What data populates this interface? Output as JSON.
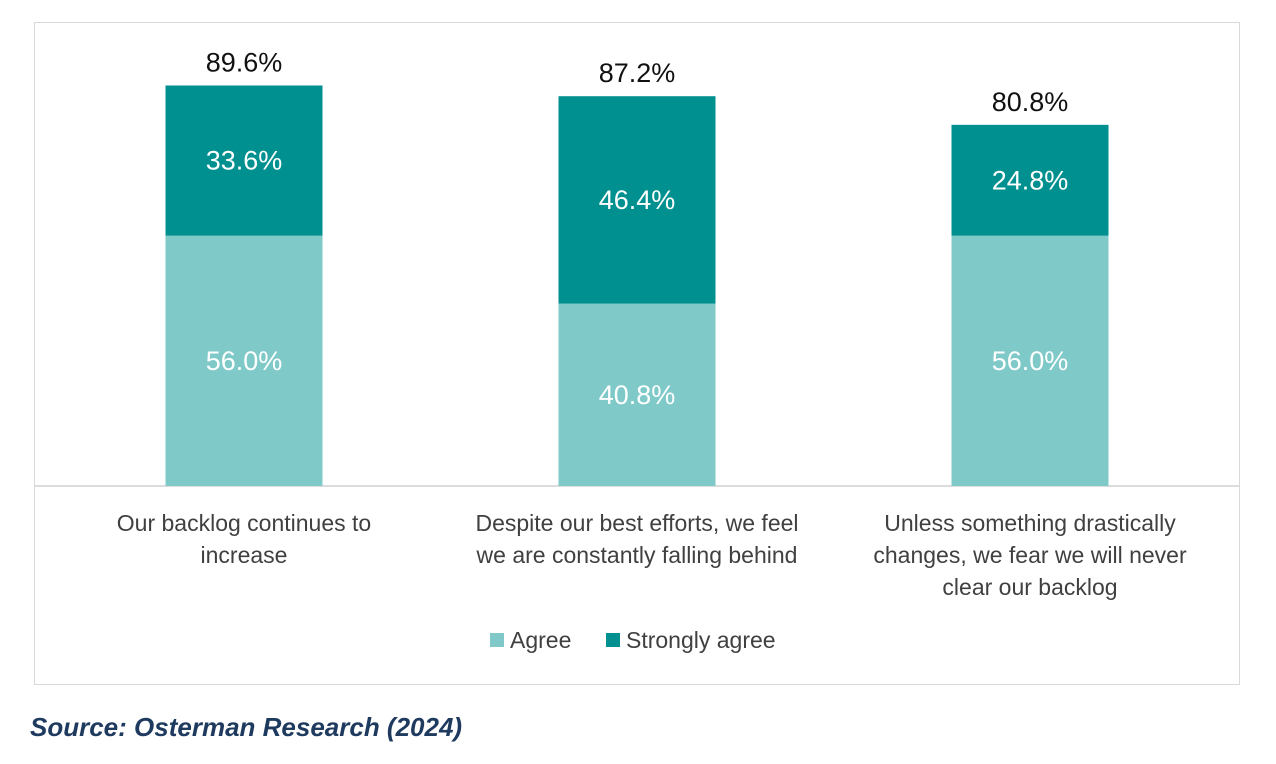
{
  "source_note": "Source: Osterman Research (2024)",
  "colors": {
    "agree": "#7fc9c9",
    "strongly_agree": "#009090",
    "axis": "#d0d0d0"
  },
  "chart_data": {
    "type": "bar",
    "stacked": true,
    "categories": [
      [
        "Our backlog continues to",
        "increase"
      ],
      [
        "Despite our best efforts, we feel",
        "we are constantly falling behind"
      ],
      [
        "Unless something drastically",
        "changes, we fear we will never",
        "clear our backlog"
      ]
    ],
    "series": [
      {
        "name": "Agree",
        "values": [
          56.0,
          40.8,
          56.0
        ],
        "labels": [
          "56.0%",
          "40.8%",
          "56.0%"
        ]
      },
      {
        "name": "Strongly agree",
        "values": [
          33.6,
          46.4,
          24.8
        ],
        "labels": [
          "33.6%",
          "46.4%",
          "24.8%"
        ]
      }
    ],
    "totals": [
      89.6,
      87.2,
      80.8
    ],
    "total_labels": [
      "89.6%",
      "87.2%",
      "80.8%"
    ],
    "ylim": [
      0,
      100
    ],
    "grid": false,
    "legend_position": "bottom"
  }
}
